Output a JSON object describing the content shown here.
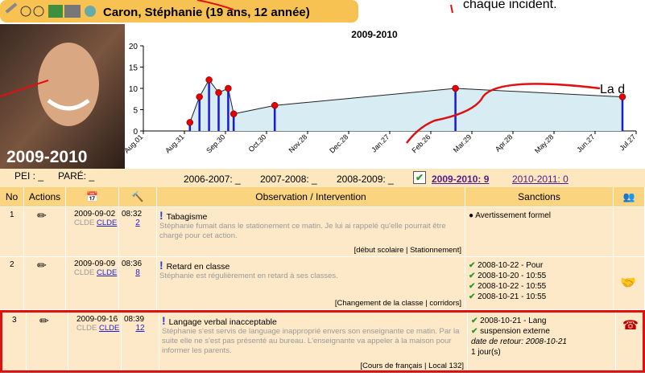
{
  "header": {
    "name": "Caron, Stéphanie (19 ans, 12 année)"
  },
  "annotations": [
    "chaque incident.",
    "La d"
  ],
  "photo_caption": "2009-2010",
  "chart": {
    "type": "line",
    "title": "2009-2010",
    "x": [
      34,
      41,
      48,
      55,
      62,
      66,
      96,
      228,
      350
    ],
    "values": [
      2,
      8,
      12,
      9,
      10,
      4,
      6,
      10,
      8
    ],
    "xlim": [
      0,
      360
    ],
    "xticks": [
      {
        "value": 0,
        "label": "Aug.01"
      },
      {
        "value": 30,
        "label": "Aug.31"
      },
      {
        "value": 60,
        "label": "Sep.30"
      },
      {
        "value": 90,
        "label": "Oct.30"
      },
      {
        "value": 120,
        "label": "Nov.28"
      },
      {
        "value": 150,
        "label": "Dec.28"
      },
      {
        "value": 180,
        "label": "Jan.27"
      },
      {
        "value": 210,
        "label": "Feb.26"
      },
      {
        "value": 240,
        "label": "Mar.29"
      },
      {
        "value": 270,
        "label": "Apr.28"
      },
      {
        "value": 300,
        "label": "May.28"
      },
      {
        "value": 330,
        "label": "Jun.27"
      },
      {
        "value": 360,
        "label": "Jul.27"
      }
    ],
    "ylim": [
      0,
      20
    ],
    "yticks": [
      0,
      5,
      10,
      15,
      20
    ],
    "color": "#1a1ad6",
    "marker_color": "#e00000",
    "area_color": "#d8ecf4"
  },
  "plan": {
    "pei": "PEI : _",
    "pare": "PARÉ: _"
  },
  "years": [
    "2006-2007: _",
    "2007-2008: _",
    "2008-2009: _",
    "2009-2010: 9",
    "2010-2011: 0"
  ],
  "table": {
    "columns": [
      "No",
      "Actions",
      "Observation / Intervention",
      "Sanctions"
    ],
    "rows": [
      {
        "no": "1",
        "date": "2009-09-02",
        "staff": "CLDE",
        "staff_link": "CLDE",
        "time": "08:32",
        "count": "2",
        "title": "Tabagisme",
        "description": "Stéphanie fumait dans le stationement ce matin. Je lui ai rappelé qu'elle pourrait être chargé pour cet action.",
        "tags": "[début scolaire | Stationnement]",
        "sanctions": [
          "Avertissement formel"
        ]
      },
      {
        "no": "2",
        "date": "2009-09-09",
        "staff": "CLDE",
        "staff_link": "CLDE",
        "time": "08:36",
        "count": "8",
        "title": "Retard en classe",
        "description": "Stéphanie est régulièrement en retard à ses classes.",
        "tags": "[Changement de la classe | corridors]",
        "sanctions": [
          "2008-10-22 - Pour",
          "2008-10-20 - 10:55",
          "2008-10-22 - 10:55",
          "2008-10-21 - 10:55"
        ]
      },
      {
        "no": "3",
        "date": "2009-09-16",
        "staff": "CLDE",
        "staff_link": "CLDE",
        "time": "08:39",
        "count": "12",
        "title": "Langage verbal inacceptable",
        "description": "Stéphanie s'est servis de language inapproprié envers son enseignante ce matin. Par la suite elle ne s'est pas présenté au bureau. L'enseignante va appeler à la maison pour informer les parents.",
        "tags": "[Cours de français | Local 132]",
        "sanctions": [
          "2008-10-21 - Lang",
          "suspension externe",
          "date de retour: 2008-10-21",
          "1 jour(s)"
        ]
      }
    ]
  }
}
